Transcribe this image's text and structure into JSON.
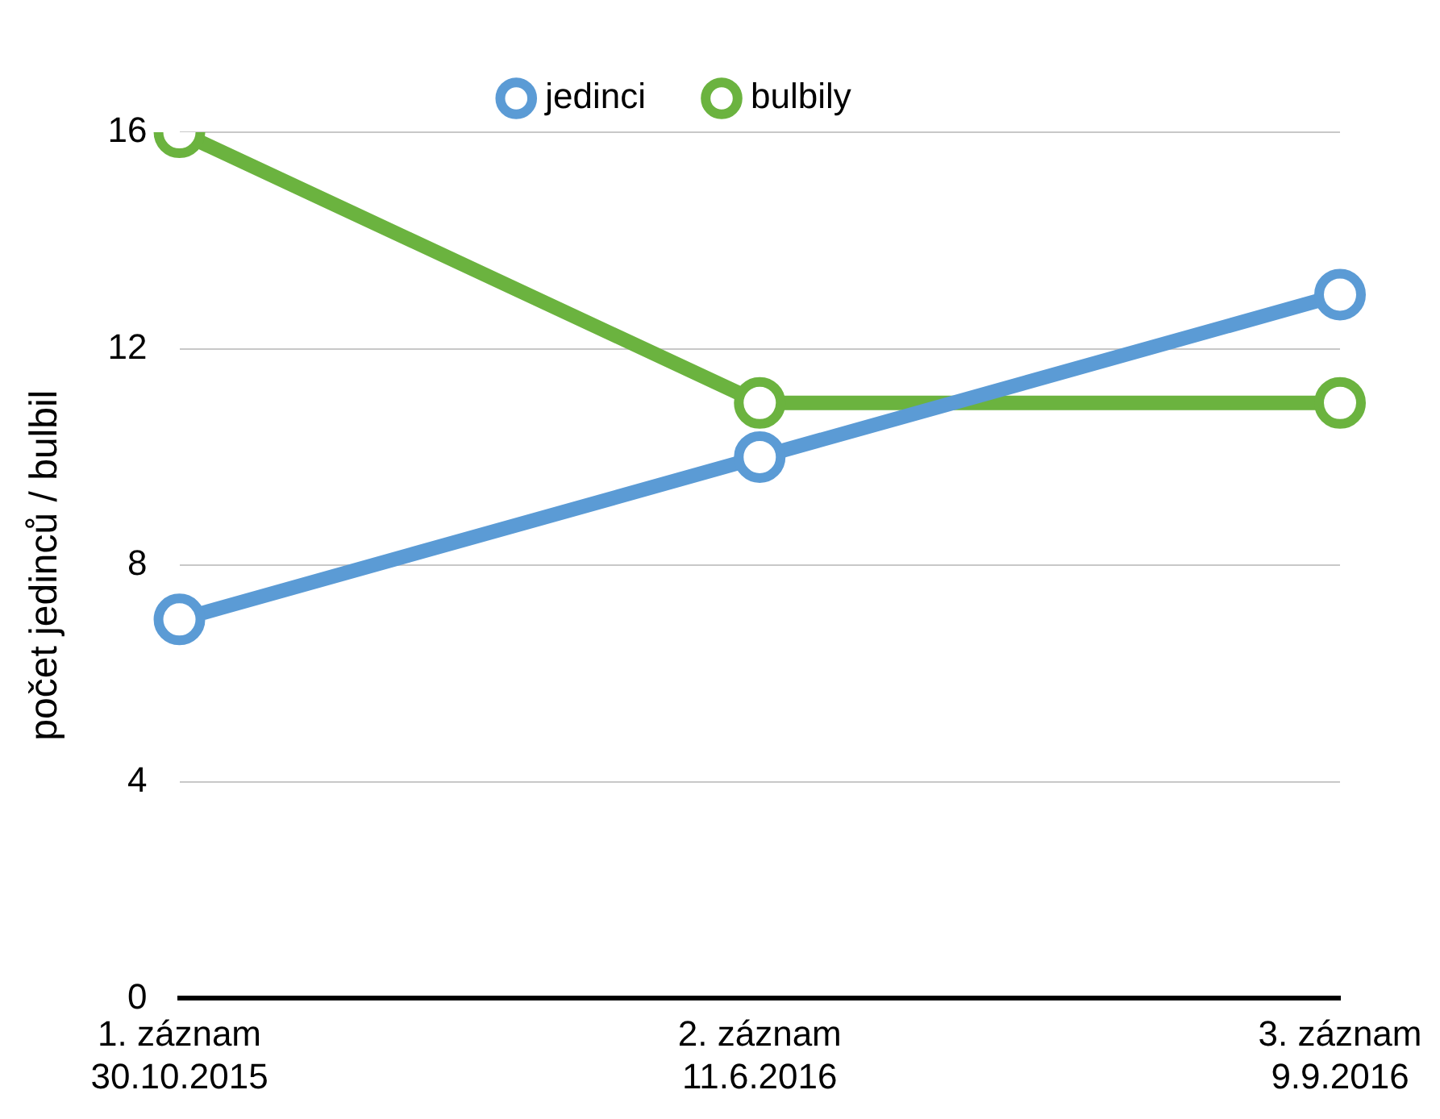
{
  "chart_data": {
    "type": "line",
    "ylabel": "počet jedinců / bulbil",
    "categories": [
      "1. záznam\n30.10.2015",
      "2. záznam\n11.6.2016",
      "3. záznam\n9.9.2016"
    ],
    "series": [
      {
        "name": "jedinci",
        "color": "#5b9bd5",
        "values": [
          7,
          10,
          13
        ]
      },
      {
        "name": "bulbily",
        "color": "#6bb33f",
        "values": [
          16,
          11,
          11
        ]
      }
    ],
    "ylim": [
      0,
      16
    ],
    "yticks": [
      0,
      4,
      8,
      12,
      16
    ],
    "grid": "y",
    "legend": "top",
    "marker": "circle",
    "line_style": "solid"
  }
}
